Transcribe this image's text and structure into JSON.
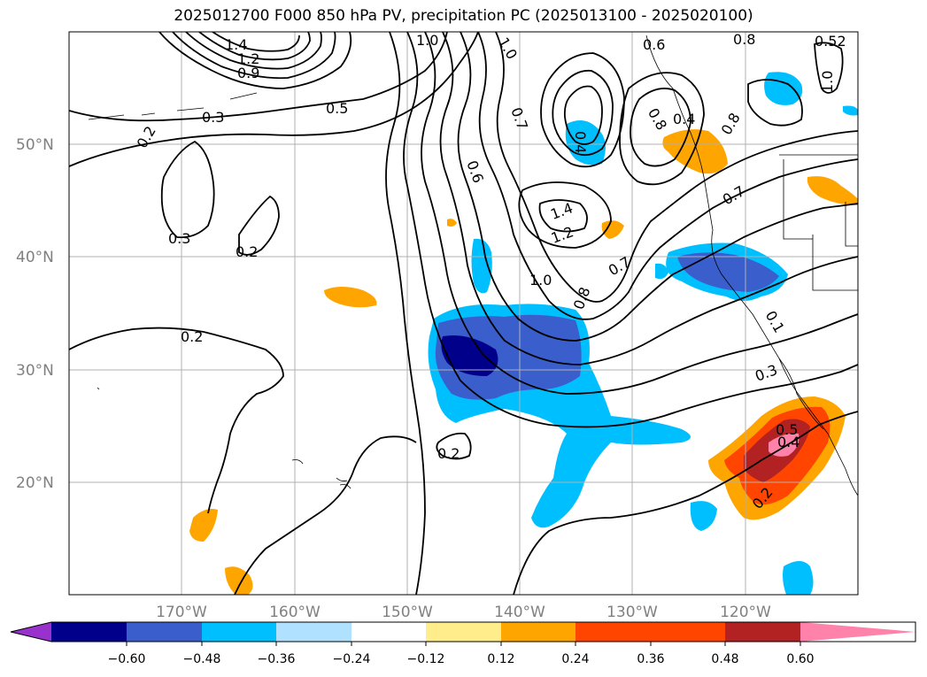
{
  "title": "2025012700 F000 850 hPa PV, precipitation PC (2025013100 - 2025020100)",
  "map": {
    "lat_labels": [
      "50°N",
      "40°N",
      "30°N",
      "20°N"
    ],
    "lon_labels": [
      "170°W",
      "160°W",
      "150°W",
      "140°W",
      "130°W",
      "120°W"
    ],
    "contour_labels": [
      "1.4",
      "1.2",
      "1.0",
      "0.9",
      "1.0",
      "0.8",
      "0.6",
      "0.52",
      "0.4",
      "0.3",
      "0.2",
      "0.5",
      "0.7",
      "0.6",
      "1.0",
      "0.8",
      "0.7",
      "0.3",
      "0.2",
      "0.2",
      "1.4",
      "1.2",
      "0.7",
      "1.0",
      "0.8",
      "0.3",
      "0.4",
      "0.5",
      "0.2",
      "0.2",
      "0.8",
      "0.4",
      "0.1"
    ]
  },
  "colorbar": {
    "ticks": [
      "−0.60",
      "−0.48",
      "−0.36",
      "−0.24",
      "−0.12",
      "0.12",
      "0.24",
      "0.36",
      "0.48",
      "0.60"
    ],
    "colors": [
      "#9932cc",
      "#00008b",
      "#3a5fcd",
      "#00bfff",
      "#b0e2ff",
      "#ffffff",
      "#ffec8b",
      "#ffa500",
      "#ff4500",
      "#b22222",
      "#ff82ab"
    ]
  }
}
